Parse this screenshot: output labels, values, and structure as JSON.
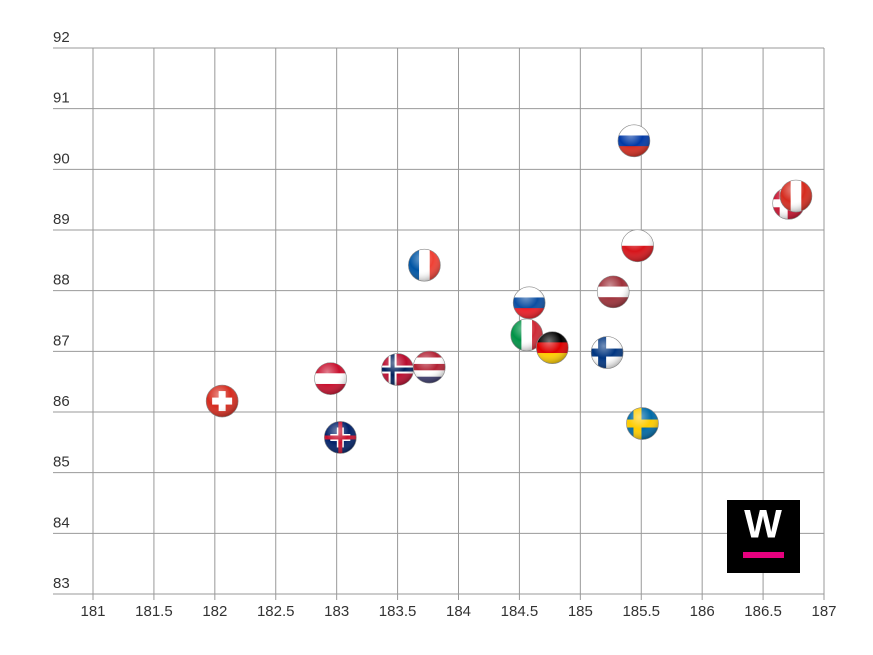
{
  "chart_data": {
    "type": "scatter",
    "x": [
      182.06,
      182.95,
      183.03,
      183.5,
      183.76,
      183.72,
      184.58,
      184.56,
      184.77,
      185.27,
      185.22,
      185.44,
      185.47,
      185.51,
      186.71,
      186.77
    ],
    "y": [
      86.18,
      86.55,
      85.58,
      86.7,
      86.74,
      88.42,
      87.8,
      87.27,
      87.06,
      87.98,
      86.98,
      90.47,
      88.74,
      85.81,
      89.44,
      89.56
    ],
    "markers": [
      {
        "kind": "cross",
        "colors": [
          "#d52b1e",
          "#ffffff"
        ]
      },
      {
        "kind": "h",
        "colors": [
          "#c8102e",
          "#ffffff",
          "#c8102e"
        ]
      },
      {
        "kind": "cross",
        "colors": [
          "#012169",
          "#ffffff",
          "#c8102e"
        ]
      },
      {
        "kind": "nordic",
        "colors": [
          "#ba0c2f",
          "#ffffff",
          "#00205b"
        ]
      },
      {
        "kind": "h",
        "colors": [
          "#b22234",
          "#ffffff",
          "#b22234",
          "#ffffff",
          "#3c3b6e"
        ]
      },
      {
        "kind": "v",
        "colors": [
          "#0055a4",
          "#ffffff",
          "#ef4135"
        ]
      },
      {
        "kind": "h",
        "colors": [
          "#ffffff",
          "#0b4ea2",
          "#ee1c25"
        ]
      },
      {
        "kind": "v",
        "colors": [
          "#009246",
          "#ffffff",
          "#ce2b37"
        ]
      },
      {
        "kind": "h",
        "colors": [
          "#000000",
          "#dd0000",
          "#ffce00"
        ]
      },
      {
        "kind": "h",
        "colors": [
          "#9e3039",
          "#ffffff",
          "#9e3039"
        ]
      },
      {
        "kind": "nordic",
        "colors": [
          "#ffffff",
          "#003580",
          "#003580"
        ]
      },
      {
        "kind": "h",
        "colors": [
          "#ffffff",
          "#0039a6",
          "#d52b1e"
        ]
      },
      {
        "kind": "h",
        "colors": [
          "#ffffff",
          "#d7141a"
        ]
      },
      {
        "kind": "nordic",
        "colors": [
          "#006aa7",
          "#fecc00",
          "#fecc00"
        ]
      },
      {
        "kind": "nordic",
        "colors": [
          "#c8102e",
          "#ffffff",
          "#ffffff"
        ]
      },
      {
        "kind": "v",
        "colors": [
          "#d52b1e",
          "#ffffff",
          "#d52b1e"
        ]
      }
    ],
    "xlim": [
      181,
      187
    ],
    "ylim": [
      83,
      92
    ],
    "xticks": [
      181,
      181.5,
      182,
      182.5,
      183,
      183.5,
      184,
      184.5,
      185,
      185.5,
      186,
      186.5,
      187
    ],
    "yticks": [
      83,
      84,
      85,
      86,
      87,
      88,
      89,
      90,
      91,
      92
    ],
    "grid": true,
    "logo": "W"
  }
}
